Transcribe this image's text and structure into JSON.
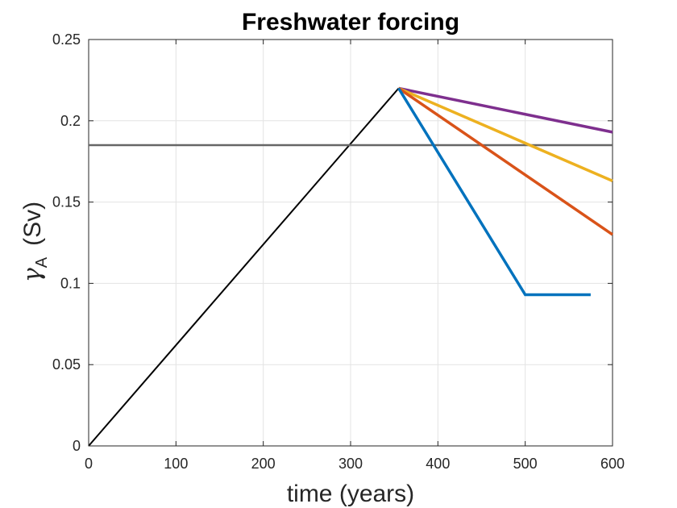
{
  "chart_data": {
    "type": "line",
    "title": "Freshwater forcing",
    "xlabel": "time (years)",
    "ylabel": {
      "symbol": "γ",
      "subscript": "A",
      "units": "(Sv)"
    },
    "xlim": [
      0,
      600
    ],
    "ylim": [
      0,
      0.25
    ],
    "xticks": [
      0,
      100,
      200,
      300,
      400,
      500,
      600
    ],
    "yticks": [
      0,
      0.05,
      0.1,
      0.15,
      0.2,
      0.25
    ],
    "xtick_labels": [
      "0",
      "100",
      "200",
      "300",
      "400",
      "500",
      "600"
    ],
    "ytick_labels": [
      "0",
      "0.05",
      "0.1",
      "0.15",
      "0.2",
      "0.25"
    ],
    "grid": true,
    "legend": "none",
    "series": [
      {
        "color": "#000000",
        "width": 2,
        "x": [
          0,
          355
        ],
        "y": [
          0,
          0.22
        ]
      },
      {
        "color": "#666666",
        "width": 2.5,
        "x": [
          0,
          600
        ],
        "y": [
          0.185,
          0.185
        ]
      },
      {
        "color": "#7E2F8E",
        "width": 3.5,
        "x": [
          355,
          600
        ],
        "y": [
          0.22,
          0.193
        ]
      },
      {
        "color": "#EDB120",
        "width": 3.5,
        "x": [
          355,
          600
        ],
        "y": [
          0.22,
          0.163
        ]
      },
      {
        "color": "#D95319",
        "width": 3.5,
        "x": [
          355,
          600
        ],
        "y": [
          0.22,
          0.13
        ]
      },
      {
        "color": "#0072BD",
        "width": 3.5,
        "x": [
          355,
          500,
          575
        ],
        "y": [
          0.22,
          0.093,
          0.093
        ]
      }
    ]
  }
}
